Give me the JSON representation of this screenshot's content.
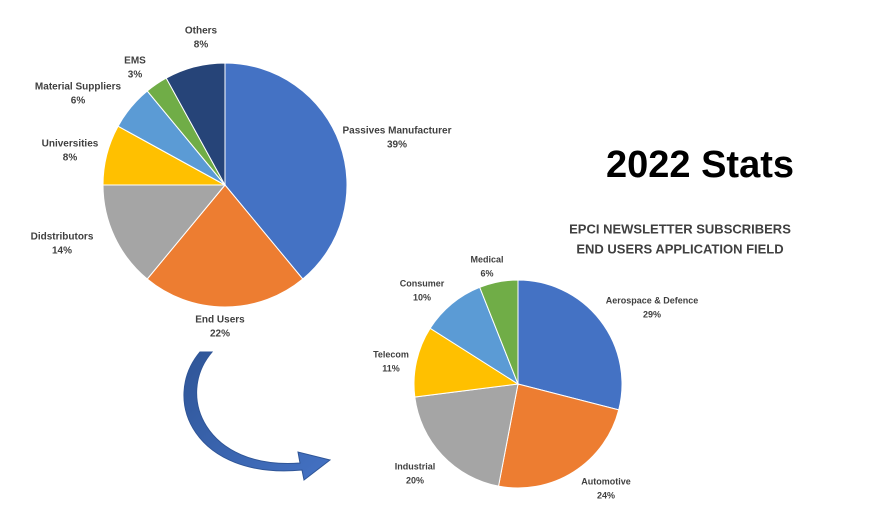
{
  "title": "2022 Stats",
  "chart_data": [
    {
      "type": "pie",
      "categories": [
        "Passives Manufacturer",
        "End Users",
        "Didstributors",
        "Universities",
        "Material Suppliers",
        "EMS",
        "Others"
      ],
      "values": [
        39,
        22,
        14,
        8,
        6,
        3,
        8
      ],
      "value_labels": [
        "39%",
        "22%",
        "14%",
        "8%",
        "6%",
        "3%",
        "8%"
      ],
      "colors": [
        "#4472c4",
        "#ed7d31",
        "#a5a5a5",
        "#ffc000",
        "#5b9bd5",
        "#70ad47",
        "#264478"
      ]
    },
    {
      "type": "pie",
      "title": "EPCI NEWSLETTER SUBSCRIBERS",
      "subtitle": "END USERS APPLICATION FIELD",
      "categories": [
        "Aerospace & Defence",
        "Automotive",
        "Industrial",
        "Telecom",
        "Consumer",
        "Medical"
      ],
      "values": [
        29,
        24,
        20,
        11,
        10,
        6
      ],
      "value_labels": [
        "29%",
        "24%",
        "20%",
        "11%",
        "10%",
        "6%"
      ],
      "colors": [
        "#4472c4",
        "#ed7d31",
        "#a5a5a5",
        "#ffc000",
        "#5b9bd5",
        "#70ad47"
      ]
    }
  ]
}
